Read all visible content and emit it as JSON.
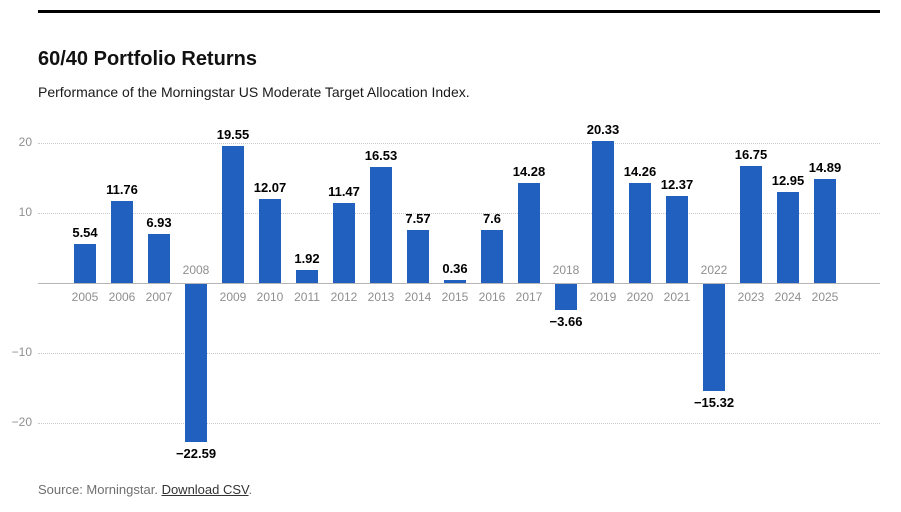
{
  "header": {
    "title": "60/40 Portfolio Returns",
    "subtitle": "Performance of the Morningstar US Moderate Target Allocation Index."
  },
  "footer": {
    "source_prefix": "Source: Morningstar. ",
    "link_label": "Download CSV",
    "suffix": "."
  },
  "colors": {
    "bar": "#2160bf",
    "grid": "#c9c9c9",
    "axis_text": "#8f8f8f",
    "value_text": "#000000"
  },
  "chart_data": {
    "type": "bar",
    "title": "60/40 Portfolio Returns",
    "subtitle": "Performance of the Morningstar US Moderate Target Allocation Index.",
    "categories": [
      "2005",
      "2006",
      "2007",
      "2008",
      "2009",
      "2010",
      "2011",
      "2012",
      "2013",
      "2014",
      "2015",
      "2016",
      "2017",
      "2018",
      "2019",
      "2020",
      "2021",
      "2022",
      "2023",
      "2024",
      "2025"
    ],
    "values": [
      5.54,
      11.76,
      6.93,
      -22.59,
      19.55,
      12.07,
      1.92,
      11.47,
      16.53,
      7.57,
      0.36,
      7.6,
      14.28,
      -3.66,
      20.33,
      14.26,
      12.37,
      -15.32,
      16.75,
      12.95,
      14.89
    ],
    "value_labels": [
      "5.54",
      "11.76",
      "6.93",
      "−22.59",
      "19.55",
      "12.07",
      "1.92",
      "11.47",
      "16.53",
      "7.57",
      "0.36",
      "7.6",
      "14.28",
      "−3.66",
      "20.33",
      "14.26",
      "12.37",
      "−15.32",
      "16.75",
      "12.95",
      "14.89"
    ],
    "xlabel": "",
    "ylabel": "",
    "ylim": [
      -25,
      23
    ],
    "yticks": [
      {
        "v": 20,
        "label": "20"
      },
      {
        "v": 10,
        "label": "10"
      },
      {
        "v": -10,
        "label": "−10"
      },
      {
        "v": -20,
        "label": "−20"
      }
    ],
    "grid": "horizontal-dotted",
    "legend": "none",
    "bar_color": "#2160bf"
  }
}
